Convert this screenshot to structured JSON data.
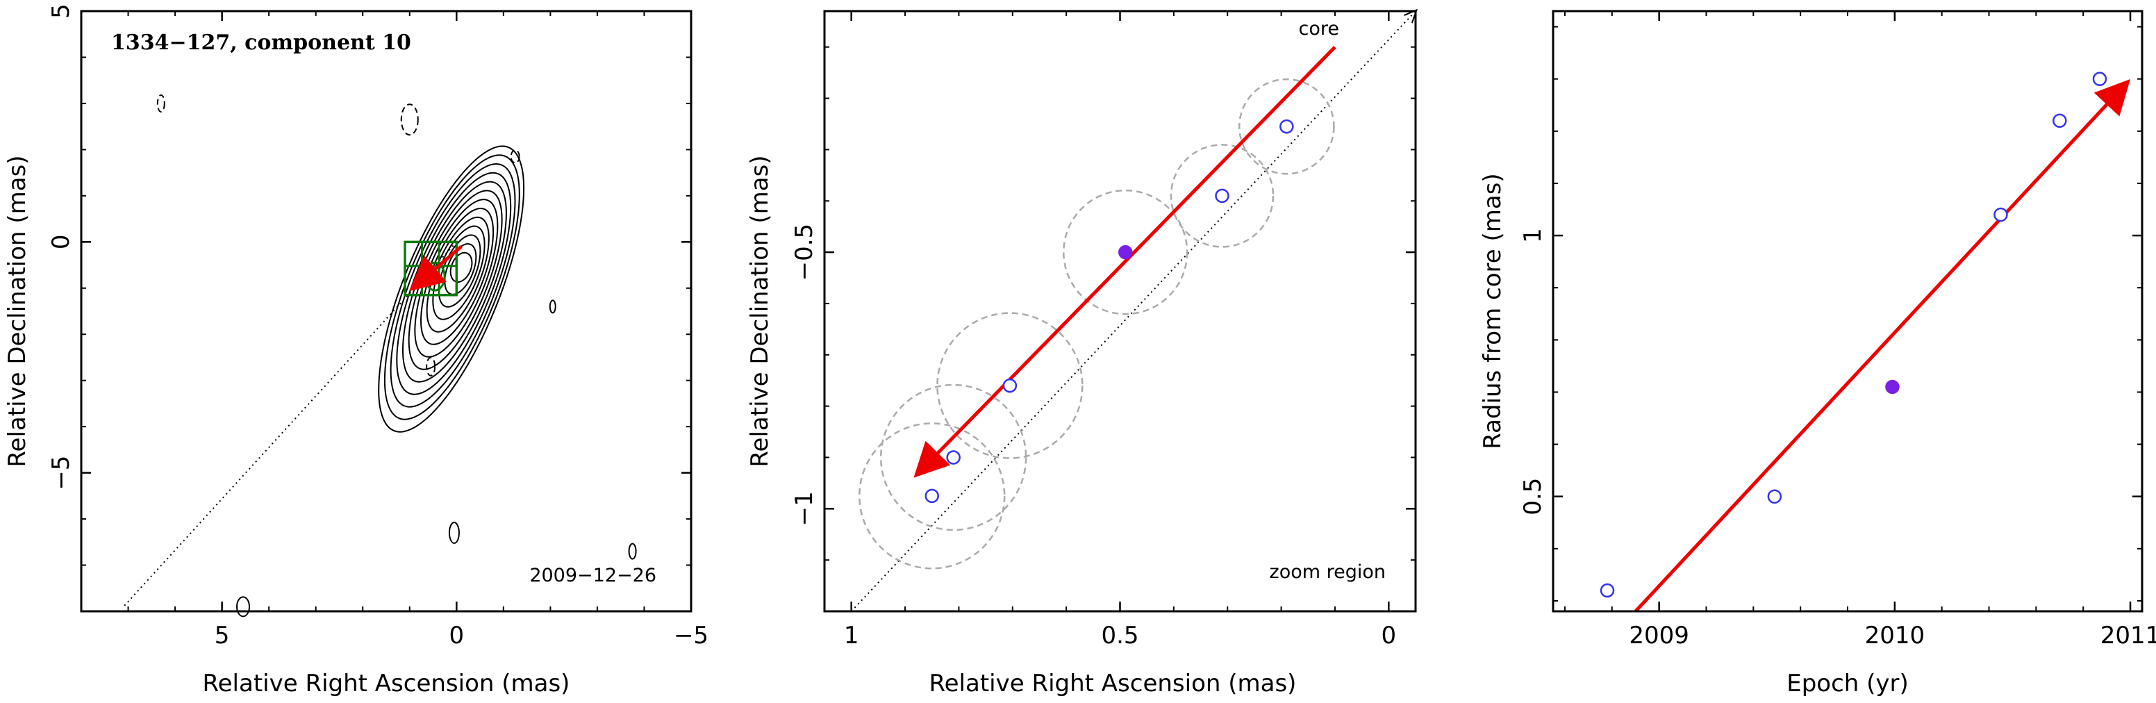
{
  "chart_data": [
    {
      "type": "contour",
      "title": "1334−127, component 10",
      "date_label": "2009−12−26",
      "xlabel": "Relative Right Ascension (mas)",
      "ylabel": "Relative Declination (mas)",
      "xlim": [
        8,
        -5
      ],
      "ylim": [
        -8,
        5
      ],
      "xticks": [
        {
          "value": 5,
          "label": "5"
        },
        {
          "value": 0,
          "label": "0"
        },
        {
          "value": -5,
          "label": "−5"
        }
      ],
      "yticks": [
        {
          "value": 5,
          "label": "5"
        },
        {
          "value": 0,
          "label": "0"
        },
        {
          "value": -5,
          "label": "−5"
        }
      ],
      "contour_center": [
        -0.1,
        -0.55
      ],
      "contour_levels": 13,
      "zoom_region": {
        "x": [
          0,
          1.1
        ],
        "y": [
          -1.15,
          0
        ]
      },
      "jet_arrow": {
        "from": [
          -0.1,
          -0.1
        ],
        "to": [
          0.9,
          -0.97
        ]
      },
      "core_line": {
        "from": [
          0,
          0
        ],
        "to": [
          7.1,
          -7.9
        ]
      },
      "colors": {
        "contour": "#000000",
        "zoom_box": "#0b7a0b",
        "arrow": "#ee0000"
      }
    },
    {
      "type": "scatter",
      "xlabel": "Relative Right Ascension (mas)",
      "ylabel": "Relative Declination (mas)",
      "xlim": [
        1.05,
        -0.05
      ],
      "ylim": [
        -1.2,
        -0.03
      ],
      "xticks": [
        {
          "value": 1,
          "label": "1"
        },
        {
          "value": 0.5,
          "label": "0.5"
        },
        {
          "value": 0,
          "label": "0"
        }
      ],
      "yticks": [
        {
          "value": -0.5,
          "label": "−0.5"
        },
        {
          "value": -1,
          "label": "−1"
        }
      ],
      "annotations": {
        "core": "core",
        "zoom": "zoom region"
      },
      "points": [
        {
          "x": 0.85,
          "y": -0.975,
          "r": 0.135,
          "filled": false
        },
        {
          "x": 0.81,
          "y": -0.9,
          "r": 0.135,
          "filled": false
        },
        {
          "x": 0.705,
          "y": -0.76,
          "r": 0.135,
          "filled": false
        },
        {
          "x": 0.49,
          "y": -0.5,
          "r": 0.115,
          "filled": true
        },
        {
          "x": 0.31,
          "y": -0.39,
          "r": 0.095,
          "filled": false
        },
        {
          "x": 0.19,
          "y": -0.255,
          "r": 0.088,
          "filled": false
        }
      ],
      "fit_arrow": {
        "from": [
          0.1,
          -0.1
        ],
        "to": [
          0.875,
          -0.93
        ]
      },
      "core_line": {
        "from": [
          1.0,
          -1.2
        ],
        "to": [
          -0.05,
          -0.03
        ]
      },
      "colors": {
        "open_point": "#3333ee",
        "filled_point": "#7a1fe6",
        "circle": "#aaaaaa",
        "arrow": "#ee0000"
      }
    },
    {
      "type": "scatter",
      "xlabel": "Epoch (yr)",
      "ylabel": "Radius from core (mas)",
      "xlim": [
        2008.55,
        2011.05
      ],
      "ylim": [
        0.28,
        1.43
      ],
      "xticks": [
        {
          "value": 2009,
          "label": "2009"
        },
        {
          "value": 2010,
          "label": "2010"
        },
        {
          "value": 2011,
          "label": "2011"
        }
      ],
      "yticks": [
        {
          "value": 0.5,
          "label": "0.5"
        },
        {
          "value": 1,
          "label": "1"
        }
      ],
      "points": [
        {
          "x": 2008.78,
          "y": 0.32,
          "filled": false
        },
        {
          "x": 2009.49,
          "y": 0.5,
          "filled": false
        },
        {
          "x": 2009.99,
          "y": 0.71,
          "filled": true
        },
        {
          "x": 2010.45,
          "y": 1.04,
          "filled": false
        },
        {
          "x": 2010.7,
          "y": 1.22,
          "filled": false
        },
        {
          "x": 2010.87,
          "y": 1.3,
          "filled": false
        }
      ],
      "fit_arrow": {
        "from": [
          2008.9,
          0.28
        ],
        "to": [
          2010.98,
          1.29
        ]
      },
      "colors": {
        "open_point": "#3333ee",
        "filled_point": "#7a1fe6",
        "arrow": "#ee0000"
      }
    }
  ]
}
